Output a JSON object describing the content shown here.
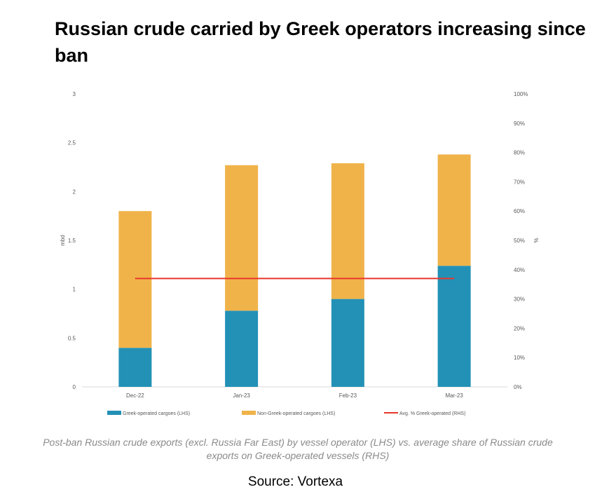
{
  "title": "Russian crude carried by Greek operators increasing since ban",
  "caption": "Post-ban Russian crude exports (excl. Russia Far East) by vessel operator  (LHS) vs. average share of Russian crude exports on Greek-operated vessels  (RHS)",
  "source": "Source: Vortexa",
  "colors": {
    "greek": "#2391b6",
    "non_greek": "#f0b34a",
    "avg_line": "#e8362b",
    "axis": "#d9d9d9",
    "tick_text": "#595959"
  },
  "chart_data": {
    "type": "bar",
    "stacked": true,
    "categories": [
      "Dec-22",
      "Jan-23",
      "Feb-23",
      "Mar-23"
    ],
    "series": [
      {
        "name": "Greek-operated cargoes (LHS)",
        "values": [
          0.4,
          0.78,
          0.9,
          1.24
        ],
        "axis": "left",
        "color": "#2391b6"
      },
      {
        "name": "Non-Greek-operated cargoes (LHS)",
        "values": [
          1.4,
          1.49,
          1.39,
          1.14
        ],
        "axis": "left",
        "color": "#f0b34a"
      },
      {
        "name": "Avg. % Greek-operated (RHS)",
        "type": "line",
        "values": [
          37,
          37,
          37,
          37
        ],
        "axis": "right",
        "color": "#e8362b"
      }
    ],
    "ylabel": "mbd",
    "ylim": [
      0,
      3
    ],
    "yticks": [
      "0",
      "0.5",
      "1",
      "1.5",
      "2",
      "2.5",
      "3"
    ],
    "y2label": "%",
    "y2lim": [
      0,
      100
    ],
    "y2ticks": [
      "0%",
      "10%",
      "20%",
      "30%",
      "40%",
      "50%",
      "60%",
      "70%",
      "80%",
      "90%",
      "100%"
    ],
    "legend_position": "bottom",
    "grid": false
  }
}
